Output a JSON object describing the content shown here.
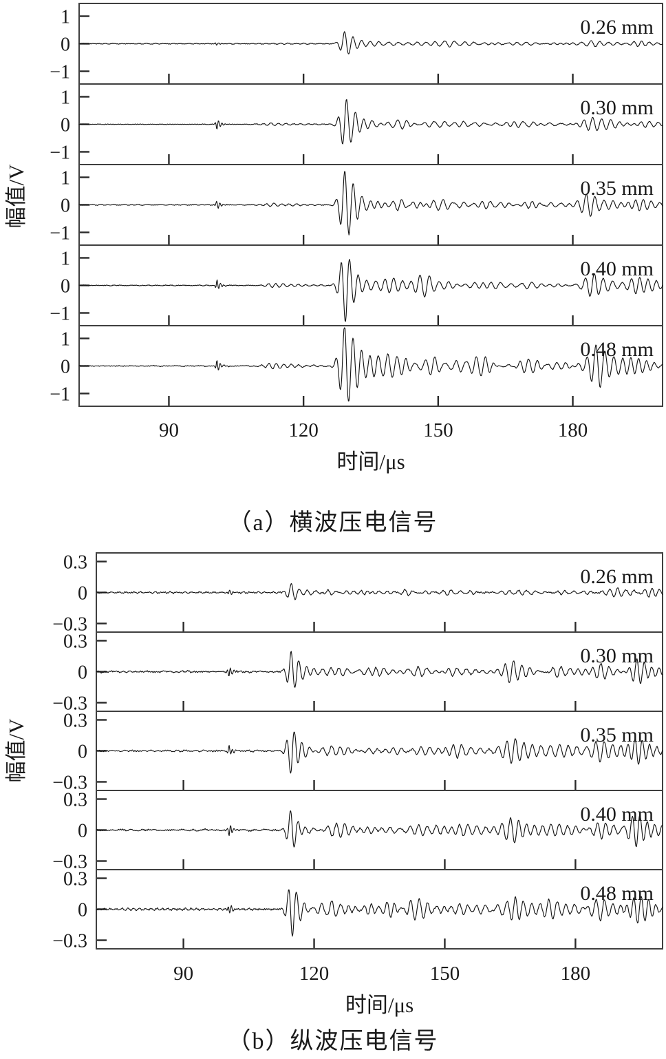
{
  "page": {
    "background": "#ffffff",
    "text_color": "#1a1a1a",
    "wave_color": "#151515",
    "frame_color": "#3f3f3f",
    "tick_color": "#2a2a2a"
  },
  "chart_data": [
    {
      "id": "panel-a",
      "type": "line",
      "caption": "（a）横波压电信号",
      "xlabel": "时间/μs",
      "ylabel": "幅值/V",
      "xlim": [
        70,
        200
      ],
      "xticks": [
        {
          "v": 90,
          "label": "90"
        },
        {
          "v": 120,
          "label": "120"
        },
        {
          "v": 150,
          "label": "150"
        },
        {
          "v": 180,
          "label": "180"
        }
      ],
      "ylim": [
        -1.46,
        1.46
      ],
      "yticks": [
        {
          "v": 1,
          "label": "1"
        },
        {
          "v": 0,
          "label": "0"
        },
        {
          "v": -1,
          "label": "−1"
        }
      ],
      "legend": "none",
      "grid": false,
      "series": [
        {
          "name": "0.26 mm",
          "seed": 11,
          "noise": 0.012,
          "coda": {
            "t0": 130,
            "a": 0.045,
            "tau": 70
          },
          "bursts": [
            {
              "t0": 100.6,
              "a": 0.05,
              "f": 1.3,
              "rise": 0.3,
              "decay": 0.8
            },
            {
              "t0": 113,
              "a": 0.03,
              "f": 0.6,
              "rise": 2,
              "decay": 6
            },
            {
              "t0": 129.5,
              "a": 0.46,
              "f": 0.52,
              "rise": 1.1,
              "decay": 2.8
            },
            {
              "t0": 140,
              "a": 0.07,
              "f": 0.48,
              "rise": 3,
              "decay": 6
            },
            {
              "t0": 153,
              "a": 0.09,
              "f": 0.45,
              "rise": 3,
              "decay": 5
            },
            {
              "t0": 170,
              "a": 0.05,
              "f": 0.5,
              "rise": 4,
              "decay": 6
            },
            {
              "t0": 184.5,
              "a": 0.12,
              "f": 0.5,
              "rise": 2.5,
              "decay": 5
            },
            {
              "t0": 195.5,
              "a": 0.1,
              "f": 0.55,
              "rise": 2,
              "decay": 4
            }
          ]
        },
        {
          "name": "0.30 mm",
          "seed": 22,
          "noise": 0.012,
          "coda": {
            "t0": 130,
            "a": 0.07,
            "tau": 70
          },
          "bursts": [
            {
              "t0": 100.8,
              "a": 0.2,
              "f": 1.3,
              "rise": 0.3,
              "decay": 0.7
            },
            {
              "t0": 113,
              "a": 0.05,
              "f": 0.6,
              "rise": 2,
              "decay": 6
            },
            {
              "t0": 129.5,
              "a": 0.95,
              "f": 0.52,
              "rise": 1.1,
              "decay": 2.6
            },
            {
              "t0": 141,
              "a": 0.12,
              "f": 0.5,
              "rise": 2.5,
              "decay": 5
            },
            {
              "t0": 154,
              "a": 0.12,
              "f": 0.45,
              "rise": 3,
              "decay": 5
            },
            {
              "t0": 168,
              "a": 0.1,
              "f": 0.5,
              "rise": 3,
              "decay": 5
            },
            {
              "t0": 185,
              "a": 0.3,
              "f": 0.5,
              "rise": 2,
              "decay": 4.5
            },
            {
              "t0": 196,
              "a": 0.14,
              "f": 0.55,
              "rise": 2,
              "decay": 4
            }
          ]
        },
        {
          "name": "0.35 mm",
          "seed": 33,
          "noise": 0.013,
          "coda": {
            "t0": 130,
            "a": 0.1,
            "tau": 75
          },
          "bursts": [
            {
              "t0": 100.8,
              "a": 0.16,
              "f": 1.3,
              "rise": 0.3,
              "decay": 0.7
            },
            {
              "t0": 113.5,
              "a": 0.06,
              "f": 0.6,
              "rise": 2,
              "decay": 6
            },
            {
              "t0": 129.5,
              "a": 1.3,
              "f": 0.52,
              "rise": 1.15,
              "decay": 2.6
            },
            {
              "t0": 141,
              "a": 0.18,
              "f": 0.5,
              "rise": 2.5,
              "decay": 5
            },
            {
              "t0": 150,
              "a": 0.22,
              "f": 0.45,
              "rise": 2.5,
              "decay": 5
            },
            {
              "t0": 163,
              "a": 0.12,
              "f": 0.5,
              "rise": 3,
              "decay": 5
            },
            {
              "t0": 172,
              "a": 0.12,
              "f": 0.48,
              "rise": 3,
              "decay": 5
            },
            {
              "t0": 184,
              "a": 0.42,
              "f": 0.5,
              "rise": 2,
              "decay": 4
            },
            {
              "t0": 195,
              "a": 0.22,
              "f": 0.55,
              "rise": 2,
              "decay": 4
            }
          ]
        },
        {
          "name": "0.40 mm",
          "seed": 44,
          "noise": 0.013,
          "coda": {
            "t0": 130,
            "a": 0.13,
            "tau": 80
          },
          "bursts": [
            {
              "t0": 100.8,
              "a": 0.2,
              "f": 1.3,
              "rise": 0.3,
              "decay": 0.7
            },
            {
              "t0": 113.5,
              "a": 0.08,
              "f": 0.6,
              "rise": 2,
              "decay": 6
            },
            {
              "t0": 129.5,
              "a": 1.35,
              "f": 0.52,
              "rise": 1.15,
              "decay": 2.8
            },
            {
              "t0": 140,
              "a": 0.25,
              "f": 0.5,
              "rise": 2.5,
              "decay": 5
            },
            {
              "t0": 148,
              "a": 0.28,
              "f": 0.45,
              "rise": 2.5,
              "decay": 6
            },
            {
              "t0": 158,
              "a": 0.18,
              "f": 0.5,
              "rise": 3,
              "decay": 5
            },
            {
              "t0": 170,
              "a": 0.15,
              "f": 0.48,
              "rise": 3,
              "decay": 5
            },
            {
              "t0": 185,
              "a": 0.5,
              "f": 0.5,
              "rise": 2,
              "decay": 4
            },
            {
              "t0": 194.5,
              "a": 0.28,
              "f": 0.55,
              "rise": 2,
              "decay": 4.5
            }
          ]
        },
        {
          "name": "0.48 mm",
          "seed": 55,
          "noise": 0.014,
          "coda": {
            "t0": 130,
            "a": 0.16,
            "tau": 85
          },
          "bursts": [
            {
              "t0": 100.8,
              "a": 0.22,
              "f": 1.3,
              "rise": 0.3,
              "decay": 0.7
            },
            {
              "t0": 113.5,
              "a": 0.1,
              "f": 0.6,
              "rise": 2,
              "decay": 6
            },
            {
              "t0": 129.5,
              "a": 1.55,
              "f": 0.52,
              "rise": 1.2,
              "decay": 3
            },
            {
              "t0": 139,
              "a": 0.3,
              "f": 0.5,
              "rise": 2.5,
              "decay": 5
            },
            {
              "t0": 149,
              "a": 0.3,
              "f": 0.45,
              "rise": 2.5,
              "decay": 6
            },
            {
              "t0": 160,
              "a": 0.25,
              "f": 0.5,
              "rise": 3,
              "decay": 5
            },
            {
              "t0": 171,
              "a": 0.22,
              "f": 0.48,
              "rise": 3,
              "decay": 5
            },
            {
              "t0": 186,
              "a": 0.85,
              "f": 0.5,
              "rise": 1.8,
              "decay": 3.5
            },
            {
              "t0": 195,
              "a": 0.3,
              "f": 0.55,
              "rise": 2,
              "decay": 4.5
            }
          ]
        }
      ]
    },
    {
      "id": "panel-b",
      "type": "line",
      "caption": "（b）纵波压电信号",
      "xlabel": "时间/μs",
      "ylabel": "幅值/V",
      "xlim": [
        70,
        200
      ],
      "xticks": [
        {
          "v": 90,
          "label": "90"
        },
        {
          "v": 120,
          "label": "120"
        },
        {
          "v": 150,
          "label": "150"
        },
        {
          "v": 180,
          "label": "180"
        }
      ],
      "ylim": [
        -0.385,
        0.385
      ],
      "yticks": [
        {
          "v": 0.3,
          "label": "0.3"
        },
        {
          "v": 0,
          "label": "0"
        },
        {
          "v": -0.3,
          "label": "−0.3"
        }
      ],
      "legend": "none",
      "grid": false,
      "series": [
        {
          "name": "0.26 mm",
          "seed": 66,
          "noise": 0.006,
          "coda": {
            "t0": 116,
            "a": 0.018,
            "tau": 90
          },
          "bursts": [
            {
              "t0": 100.5,
              "a": 0.025,
              "f": 1.3,
              "rise": 0.3,
              "decay": 0.8
            },
            {
              "t0": 115,
              "a": 0.095,
              "f": 0.55,
              "rise": 1.0,
              "decay": 2.2
            },
            {
              "t0": 123,
              "a": 0.02,
              "f": 0.5,
              "rise": 2,
              "decay": 5
            },
            {
              "t0": 140,
              "a": 0.018,
              "f": 0.5,
              "rise": 3,
              "decay": 6
            },
            {
              "t0": 151,
              "a": 0.028,
              "f": 0.5,
              "rise": 3,
              "decay": 6
            },
            {
              "t0": 166,
              "a": 0.025,
              "f": 0.5,
              "rise": 3,
              "decay": 6
            },
            {
              "t0": 178,
              "a": 0.02,
              "f": 0.5,
              "rise": 3,
              "decay": 6
            },
            {
              "t0": 190,
              "a": 0.045,
              "f": 0.55,
              "rise": 2.5,
              "decay": 5
            },
            {
              "t0": 197,
              "a": 0.06,
              "f": 0.6,
              "rise": 1.5,
              "decay": 3
            }
          ]
        },
        {
          "name": "0.30 mm",
          "seed": 77,
          "noise": 0.007,
          "coda": {
            "t0": 116,
            "a": 0.028,
            "tau": 95
          },
          "bursts": [
            {
              "t0": 100.5,
              "a": 0.05,
              "f": 1.3,
              "rise": 0.3,
              "decay": 0.8
            },
            {
              "t0": 115,
              "a": 0.21,
              "f": 0.55,
              "rise": 1.0,
              "decay": 2.0
            },
            {
              "t0": 124,
              "a": 0.04,
              "f": 0.5,
              "rise": 2,
              "decay": 5
            },
            {
              "t0": 133,
              "a": 0.04,
              "f": 0.55,
              "rise": 3,
              "decay": 6
            },
            {
              "t0": 146,
              "a": 0.05,
              "f": 0.5,
              "rise": 3,
              "decay": 6
            },
            {
              "t0": 152,
              "a": 0.06,
              "f": 0.5,
              "rise": 2.5,
              "decay": 5
            },
            {
              "t0": 166,
              "a": 0.1,
              "f": 0.52,
              "rise": 2.2,
              "decay": 4.5
            },
            {
              "t0": 177,
              "a": 0.06,
              "f": 0.5,
              "rise": 3,
              "decay": 5
            },
            {
              "t0": 186,
              "a": 0.09,
              "f": 0.52,
              "rise": 2.2,
              "decay": 4.5
            },
            {
              "t0": 194.5,
              "a": 0.13,
              "f": 0.58,
              "rise": 1.8,
              "decay": 3.5
            }
          ]
        },
        {
          "name": "0.35 mm",
          "seed": 88,
          "noise": 0.007,
          "coda": {
            "t0": 116,
            "a": 0.03,
            "tau": 95
          },
          "bursts": [
            {
              "t0": 100.5,
              "a": 0.05,
              "f": 1.3,
              "rise": 0.3,
              "decay": 0.8
            },
            {
              "t0": 115,
              "a": 0.24,
              "f": 0.55,
              "rise": 1.0,
              "decay": 2.0
            },
            {
              "t0": 124,
              "a": 0.05,
              "f": 0.5,
              "rise": 2,
              "decay": 5
            },
            {
              "t0": 134,
              "a": 0.05,
              "f": 0.55,
              "rise": 3,
              "decay": 6
            },
            {
              "t0": 146,
              "a": 0.06,
              "f": 0.5,
              "rise": 3,
              "decay": 6
            },
            {
              "t0": 153,
              "a": 0.07,
              "f": 0.5,
              "rise": 2.5,
              "decay": 5
            },
            {
              "t0": 166,
              "a": 0.11,
              "f": 0.52,
              "rise": 2.2,
              "decay": 4.5
            },
            {
              "t0": 177,
              "a": 0.07,
              "f": 0.5,
              "rise": 3,
              "decay": 5
            },
            {
              "t0": 186,
              "a": 0.1,
              "f": 0.52,
              "rise": 2.2,
              "decay": 4.5
            },
            {
              "t0": 194.5,
              "a": 0.14,
              "f": 0.58,
              "rise": 1.8,
              "decay": 3.5
            }
          ]
        },
        {
          "name": "0.40 mm",
          "seed": 99,
          "noise": 0.007,
          "coda": {
            "t0": 116,
            "a": 0.032,
            "tau": 100
          },
          "bursts": [
            {
              "t0": 100.5,
              "a": 0.06,
              "f": 1.3,
              "rise": 0.3,
              "decay": 0.8
            },
            {
              "t0": 115,
              "a": 0.21,
              "f": 0.55,
              "rise": 1.0,
              "decay": 2.0
            },
            {
              "t0": 124,
              "a": 0.05,
              "f": 0.5,
              "rise": 2,
              "decay": 5
            },
            {
              "t0": 134,
              "a": 0.05,
              "f": 0.55,
              "rise": 3,
              "decay": 6
            },
            {
              "t0": 145,
              "a": 0.07,
              "f": 0.5,
              "rise": 3,
              "decay": 6
            },
            {
              "t0": 154,
              "a": 0.06,
              "f": 0.5,
              "rise": 2.5,
              "decay": 5
            },
            {
              "t0": 166,
              "a": 0.11,
              "f": 0.52,
              "rise": 2.2,
              "decay": 4.5
            },
            {
              "t0": 176,
              "a": 0.07,
              "f": 0.5,
              "rise": 3,
              "decay": 5
            },
            {
              "t0": 186,
              "a": 0.1,
              "f": 0.52,
              "rise": 2.2,
              "decay": 4.5
            },
            {
              "t0": 194.5,
              "a": 0.15,
              "f": 0.58,
              "rise": 1.8,
              "decay": 3.5
            }
          ]
        },
        {
          "name": "0.48 mm",
          "seed": 111,
          "noise": 0.008,
          "coda": {
            "t0": 116,
            "a": 0.035,
            "tau": 100
          },
          "bursts": [
            {
              "t0": 100.5,
              "a": 0.045,
              "f": 1.3,
              "rise": 0.3,
              "decay": 0.8
            },
            {
              "t0": 115,
              "a": 0.27,
              "f": 0.55,
              "rise": 1.0,
              "decay": 2.0
            },
            {
              "t0": 124,
              "a": 0.06,
              "f": 0.5,
              "rise": 2,
              "decay": 5
            },
            {
              "t0": 134,
              "a": 0.06,
              "f": 0.55,
              "rise": 3,
              "decay": 6
            },
            {
              "t0": 145,
              "a": 0.08,
              "f": 0.5,
              "rise": 3,
              "decay": 6
            },
            {
              "t0": 155,
              "a": 0.07,
              "f": 0.5,
              "rise": 2.5,
              "decay": 5
            },
            {
              "t0": 166,
              "a": 0.12,
              "f": 0.52,
              "rise": 2.2,
              "decay": 4.5
            },
            {
              "t0": 176,
              "a": 0.08,
              "f": 0.5,
              "rise": 3,
              "decay": 5
            },
            {
              "t0": 186,
              "a": 0.12,
              "f": 0.52,
              "rise": 2.2,
              "decay": 4.5
            },
            {
              "t0": 194.5,
              "a": 0.16,
              "f": 0.58,
              "rise": 1.8,
              "decay": 3.5
            }
          ]
        }
      ]
    }
  ]
}
